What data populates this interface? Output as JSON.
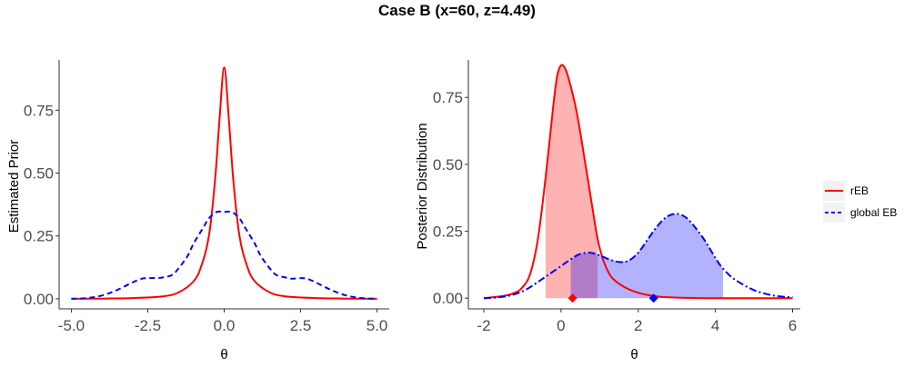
{
  "title": "Case B (x=60, z=4.49)",
  "legend": {
    "items": [
      {
        "name": "rEB",
        "color": "#ff0000",
        "dash": "solid"
      },
      {
        "name": "global EB",
        "color": "#0000ff",
        "dash": "dashed"
      }
    ]
  },
  "chart_data": [
    {
      "type": "line",
      "panel": "left",
      "xlabel": "θ",
      "ylabel": "Estimated Prior",
      "xlim": [
        -5.4,
        5.4
      ],
      "ylim": [
        -0.04,
        0.95
      ],
      "xticks": [
        -5,
        -2.5,
        0,
        2.5,
        5
      ],
      "xtick_labels": [
        "-5.0",
        "-2.5",
        "0.0",
        "2.5",
        "5.0"
      ],
      "yticks": [
        0,
        0.25,
        0.5,
        0.75
      ],
      "ytick_labels": [
        "0.00",
        "0.25",
        "0.50",
        "0.75"
      ],
      "series": [
        {
          "name": "rEB",
          "color": "#ff0000",
          "dash": "solid",
          "x": [
            -5,
            -4,
            -3,
            -2,
            -1.5,
            -1,
            -0.75,
            -0.5,
            -0.3,
            -0.15,
            0,
            0.15,
            0.3,
            0.5,
            0.75,
            1,
            1.5,
            2,
            3,
            4,
            5
          ],
          "y": [
            0,
            0.001,
            0.003,
            0.01,
            0.025,
            0.07,
            0.13,
            0.25,
            0.47,
            0.72,
            0.92,
            0.72,
            0.47,
            0.25,
            0.13,
            0.07,
            0.025,
            0.01,
            0.003,
            0.001,
            0
          ]
        },
        {
          "name": "global EB",
          "color": "#0000ff",
          "dash": "dashed",
          "x": [
            -5,
            -4.5,
            -4,
            -3.5,
            -3,
            -2.7,
            -2.5,
            -2.2,
            -2,
            -1.7,
            -1.5,
            -1.2,
            -1,
            -0.7,
            -0.5,
            -0.25,
            0,
            0.25,
            0.5,
            0.7,
            1,
            1.2,
            1.5,
            1.7,
            2,
            2.2,
            2.5,
            2.7,
            3,
            3.5,
            4,
            4.5,
            5
          ],
          "y": [
            0,
            0.003,
            0.013,
            0.035,
            0.065,
            0.08,
            0.082,
            0.083,
            0.085,
            0.095,
            0.12,
            0.17,
            0.22,
            0.28,
            0.32,
            0.345,
            0.345,
            0.345,
            0.32,
            0.28,
            0.22,
            0.17,
            0.12,
            0.095,
            0.085,
            0.08,
            0.082,
            0.08,
            0.065,
            0.035,
            0.013,
            0.003,
            0
          ]
        }
      ]
    },
    {
      "type": "area",
      "panel": "right",
      "xlabel": "θ",
      "ylabel": "Posterior Distribution",
      "xlim": [
        -2.4,
        6.2
      ],
      "ylim": [
        -0.04,
        0.89
      ],
      "xticks": [
        -2,
        0,
        2,
        4,
        6
      ],
      "xtick_labels": [
        "-2",
        "0",
        "2",
        "4",
        "6"
      ],
      "yticks": [
        0,
        0.25,
        0.5,
        0.75
      ],
      "ytick_labels": [
        "0.00",
        "0.25",
        "0.50",
        "0.75"
      ],
      "series": [
        {
          "name": "rEB",
          "color": "#ff0000",
          "dash": "solid",
          "shade_interval": [
            -0.4,
            0.95
          ],
          "shade_color": "#ff0000",
          "point_estimate": 0.3,
          "x": [
            -2,
            -1.5,
            -1.2,
            -1,
            -0.8,
            -0.6,
            -0.4,
            -0.2,
            -0.1,
            0,
            0.1,
            0.2,
            0.4,
            0.6,
            0.8,
            0.95,
            1.1,
            1.3,
            1.6,
            2,
            2.5,
            3,
            4,
            5,
            6
          ],
          "y": [
            0,
            0.008,
            0.02,
            0.04,
            0.09,
            0.22,
            0.45,
            0.72,
            0.83,
            0.87,
            0.86,
            0.82,
            0.7,
            0.53,
            0.35,
            0.22,
            0.14,
            0.08,
            0.045,
            0.02,
            0.006,
            0.002,
            0,
            0,
            0
          ]
        },
        {
          "name": "global EB",
          "color": "#0000ff",
          "dash": "dashdot",
          "shade_interval": [
            0.25,
            4.2
          ],
          "shade_color": "#0000ff",
          "point_estimate": 2.4,
          "x": [
            -2,
            -1.5,
            -1,
            -0.5,
            0,
            0.3,
            0.5,
            0.75,
            1,
            1.25,
            1.5,
            1.75,
            2,
            2.25,
            2.5,
            2.75,
            3,
            3.25,
            3.5,
            3.75,
            4,
            4.2,
            4.5,
            5,
            5.5,
            6
          ],
          "y": [
            0,
            0.005,
            0.025,
            0.07,
            0.12,
            0.15,
            0.165,
            0.17,
            0.16,
            0.145,
            0.135,
            0.14,
            0.17,
            0.22,
            0.27,
            0.305,
            0.315,
            0.3,
            0.26,
            0.21,
            0.15,
            0.11,
            0.07,
            0.03,
            0.01,
            0.003
          ]
        }
      ]
    }
  ]
}
